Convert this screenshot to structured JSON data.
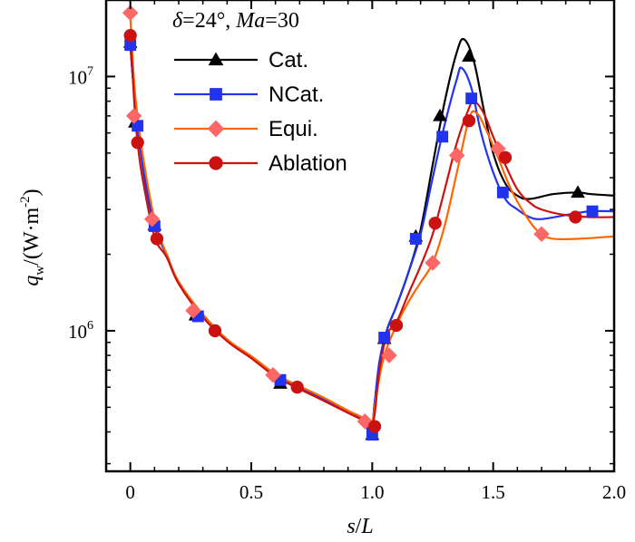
{
  "chart_data": {
    "type": "line",
    "title": "",
    "annotation": {
      "delta_symbol": "δ",
      "delta_value": "=24°, ",
      "mach_symbol": "Ma",
      "mach_value": "=30"
    },
    "xlabel": {
      "var": "s",
      "slash": "/",
      "unit": "L"
    },
    "ylabel": {
      "var": "q",
      "sub": "w",
      "unit_open": "/(W·m",
      "unit_exp": "-2",
      "unit_close": ")"
    },
    "xlim": [
      -0.1,
      2.0
    ],
    "ylim": [
      280000,
      20000000
    ],
    "yscale": "log",
    "x_ticks": [
      {
        "value": 0,
        "label": "0"
      },
      {
        "value": 0.5,
        "label": "0.5"
      },
      {
        "value": 1.0,
        "label": "1.0"
      },
      {
        "value": 1.5,
        "label": "1.5"
      },
      {
        "value": 2.0,
        "label": "2.0"
      }
    ],
    "y_ticks": [
      {
        "value": 1000000,
        "base": "10",
        "exp": "6"
      },
      {
        "value": 10000000,
        "base": "10",
        "exp": "7"
      }
    ],
    "legend_position": "top-center",
    "series": [
      {
        "name": "Cat.",
        "color": "#000000",
        "marker": "triangle",
        "line": [
          [
            0.0,
            13800000
          ],
          [
            0.01,
            10000000
          ],
          [
            0.03,
            6500000
          ],
          [
            0.06,
            4000000
          ],
          [
            0.1,
            2600000
          ],
          [
            0.15,
            2000000
          ],
          [
            0.2,
            1550000
          ],
          [
            0.3,
            1150000
          ],
          [
            0.4,
            920000
          ],
          [
            0.5,
            790000
          ],
          [
            0.6,
            670000
          ],
          [
            0.7,
            600000
          ],
          [
            0.8,
            540000
          ],
          [
            0.9,
            480000
          ],
          [
            0.96,
            450000
          ],
          [
            0.995,
            400000
          ],
          [
            1.01,
            520000
          ],
          [
            1.03,
            740000
          ],
          [
            1.06,
            1000000
          ],
          [
            1.1,
            1250000
          ],
          [
            1.15,
            1700000
          ],
          [
            1.2,
            2500000
          ],
          [
            1.25,
            4500000
          ],
          [
            1.3,
            8000000
          ],
          [
            1.35,
            12500000
          ],
          [
            1.38,
            14000000
          ],
          [
            1.42,
            11500000
          ],
          [
            1.46,
            7500000
          ],
          [
            1.5,
            5000000
          ],
          [
            1.55,
            3800000
          ],
          [
            1.6,
            3400000
          ],
          [
            1.65,
            3300000
          ],
          [
            1.75,
            3450000
          ],
          [
            1.85,
            3500000
          ],
          [
            1.9,
            3450000
          ],
          [
            2.0,
            3400000
          ]
        ],
        "markers": [
          [
            0.0,
            13600000
          ],
          [
            0.02,
            6600000
          ],
          [
            0.1,
            2600000
          ],
          [
            0.27,
            1150000
          ],
          [
            0.62,
            620000
          ],
          [
            1.0,
            390000
          ],
          [
            1.05,
            930000
          ],
          [
            1.18,
            2350000
          ],
          [
            1.28,
            7000000
          ],
          [
            1.4,
            12000000
          ],
          [
            1.85,
            3500000
          ]
        ]
      },
      {
        "name": "NCat.",
        "color": "#2233ee",
        "marker": "square",
        "line": [
          [
            0.0,
            13300000
          ],
          [
            0.01,
            10000000
          ],
          [
            0.03,
            6400000
          ],
          [
            0.06,
            3900000
          ],
          [
            0.1,
            2580000
          ],
          [
            0.15,
            1980000
          ],
          [
            0.2,
            1540000
          ],
          [
            0.3,
            1140000
          ],
          [
            0.4,
            915000
          ],
          [
            0.5,
            785000
          ],
          [
            0.6,
            665000
          ],
          [
            0.7,
            595000
          ],
          [
            0.8,
            535000
          ],
          [
            0.9,
            478000
          ],
          [
            0.96,
            448000
          ],
          [
            0.995,
            390000
          ],
          [
            1.01,
            520000
          ],
          [
            1.03,
            760000
          ],
          [
            1.06,
            1000000
          ],
          [
            1.1,
            1250000
          ],
          [
            1.15,
            1700000
          ],
          [
            1.2,
            2400000
          ],
          [
            1.25,
            4000000
          ],
          [
            1.3,
            6500000
          ],
          [
            1.35,
            9800000
          ],
          [
            1.37,
            10800000
          ],
          [
            1.41,
            9000000
          ],
          [
            1.45,
            6000000
          ],
          [
            1.5,
            4200000
          ],
          [
            1.55,
            3300000
          ],
          [
            1.6,
            3000000
          ],
          [
            1.65,
            2800000
          ],
          [
            1.7,
            2750000
          ],
          [
            1.8,
            2850000
          ],
          [
            1.9,
            2950000
          ],
          [
            2.0,
            2950000
          ]
        ],
        "markers": [
          [
            0.0,
            13300000
          ],
          [
            0.03,
            6400000
          ],
          [
            0.1,
            2580000
          ],
          [
            0.28,
            1140000
          ],
          [
            0.62,
            640000
          ],
          [
            1.0,
            390000
          ],
          [
            1.05,
            940000
          ],
          [
            1.18,
            2300000
          ],
          [
            1.29,
            5800000
          ],
          [
            1.41,
            8200000
          ],
          [
            1.54,
            3500000
          ],
          [
            1.91,
            2950000
          ]
        ]
      },
      {
        "name": "Equi.",
        "color": "#ff6600",
        "marker": "diamond",
        "marker_fill": "#ff6666",
        "line": [
          [
            0.0,
            17500000
          ],
          [
            0.005,
            14000000
          ],
          [
            0.02,
            8500000
          ],
          [
            0.05,
            5000000
          ],
          [
            0.1,
            2750000
          ],
          [
            0.15,
            2000000
          ],
          [
            0.2,
            1560000
          ],
          [
            0.3,
            1160000
          ],
          [
            0.4,
            925000
          ],
          [
            0.5,
            795000
          ],
          [
            0.6,
            675000
          ],
          [
            0.7,
            605000
          ],
          [
            0.8,
            545000
          ],
          [
            0.9,
            485000
          ],
          [
            0.96,
            455000
          ],
          [
            0.995,
            420000
          ],
          [
            1.02,
            580000
          ],
          [
            1.05,
            800000
          ],
          [
            1.1,
            1050000
          ],
          [
            1.15,
            1300000
          ],
          [
            1.2,
            1550000
          ],
          [
            1.25,
            1850000
          ],
          [
            1.3,
            2600000
          ],
          [
            1.35,
            4200000
          ],
          [
            1.4,
            6800000
          ],
          [
            1.43,
            7200000
          ],
          [
            1.47,
            6200000
          ],
          [
            1.52,
            4800000
          ],
          [
            1.58,
            3500000
          ],
          [
            1.65,
            2700000
          ],
          [
            1.7,
            2400000
          ],
          [
            1.75,
            2300000
          ],
          [
            1.85,
            2300000
          ],
          [
            2.0,
            2350000
          ]
        ],
        "markers": [
          [
            0.0,
            17800000
          ],
          [
            0.015,
            7000000
          ],
          [
            0.09,
            2750000
          ],
          [
            0.26,
            1200000
          ],
          [
            0.59,
            670000
          ],
          [
            0.97,
            440000
          ],
          [
            1.07,
            800000
          ],
          [
            1.25,
            1850000
          ],
          [
            1.35,
            4900000
          ],
          [
            1.52,
            5200000
          ],
          [
            1.7,
            2400000
          ]
        ]
      },
      {
        "name": "Ablation",
        "color": "#cc1111",
        "marker": "circle",
        "line": [
          [
            0.0,
            14500000
          ],
          [
            0.01,
            10000000
          ],
          [
            0.02,
            7000000
          ],
          [
            0.03,
            5500000
          ],
          [
            0.05,
            4000000
          ],
          [
            0.1,
            2350000
          ],
          [
            0.15,
            1950000
          ],
          [
            0.2,
            1530000
          ],
          [
            0.3,
            1130000
          ],
          [
            0.4,
            910000
          ],
          [
            0.5,
            780000
          ],
          [
            0.6,
            660000
          ],
          [
            0.7,
            590000
          ],
          [
            0.8,
            530000
          ],
          [
            0.9,
            475000
          ],
          [
            0.96,
            445000
          ],
          [
            0.995,
            420000
          ],
          [
            1.01,
            470000
          ],
          [
            1.03,
            700000
          ],
          [
            1.06,
            960000
          ],
          [
            1.1,
            1080000
          ],
          [
            1.15,
            1400000
          ],
          [
            1.2,
            1800000
          ],
          [
            1.25,
            2400000
          ],
          [
            1.3,
            3600000
          ],
          [
            1.35,
            5500000
          ],
          [
            1.4,
            7500000
          ],
          [
            1.42,
            8000000
          ],
          [
            1.46,
            7200000
          ],
          [
            1.5,
            5800000
          ],
          [
            1.55,
            4500000
          ],
          [
            1.6,
            3600000
          ],
          [
            1.65,
            3200000
          ],
          [
            1.7,
            3000000
          ],
          [
            1.8,
            2850000
          ],
          [
            1.9,
            2800000
          ],
          [
            2.0,
            2800000
          ]
        ],
        "markers": [
          [
            0.0,
            14500000
          ],
          [
            0.03,
            5500000
          ],
          [
            0.11,
            2300000
          ],
          [
            0.35,
            1000000
          ],
          [
            0.69,
            600000
          ],
          [
            1.01,
            420000
          ],
          [
            1.1,
            1050000
          ],
          [
            1.26,
            2650000
          ],
          [
            1.4,
            6700000
          ],
          [
            1.55,
            4800000
          ],
          [
            1.84,
            2800000
          ]
        ]
      }
    ]
  }
}
